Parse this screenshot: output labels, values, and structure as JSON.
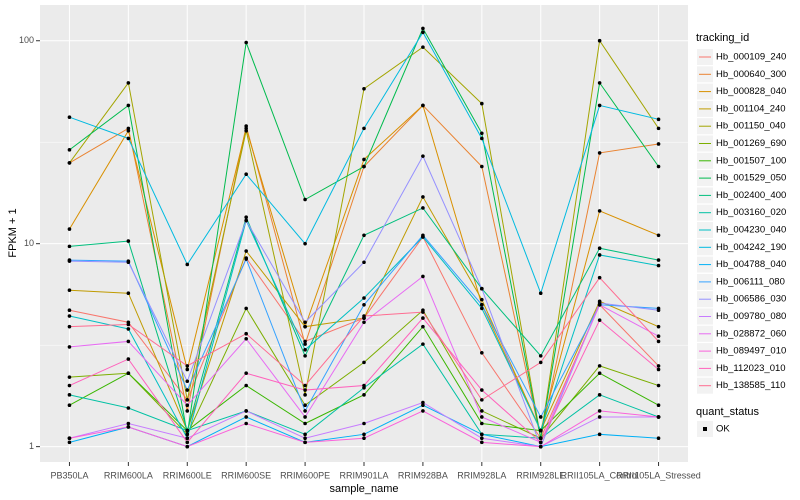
{
  "chart_data": {
    "type": "line",
    "xlabel": "sample_name",
    "ylabel": "FPKM + 1",
    "categories": [
      "PB350LA",
      "RRIM600LA",
      "RRIM600LE",
      "RRIM600SE",
      "RRIM600PE",
      "RRIM901LA",
      "RRIM928BA",
      "RRIM928LA",
      "RRIM928LE",
      "RRII105LA_Control",
      "RRII105LA_Stressed"
    ],
    "log_y": true,
    "ylim": [
      0.84,
      150
    ],
    "yticks": [
      1,
      10,
      100
    ],
    "grid": true,
    "legend_title": "tracking_id",
    "legend_position": "right",
    "point_legend": {
      "title": "quant_status",
      "labels": [
        "OK"
      ],
      "color": "#000000"
    },
    "series": [
      {
        "name": "Hb_000109_240",
        "color": "#F8766D",
        "values": [
          4.7,
          4.1,
          1.7,
          8.5,
          3.3,
          4.3,
          10.8,
          2.9,
          1.1,
          5.0,
          2.5
        ]
      },
      {
        "name": "Hb_000640_300",
        "color": "#EA8331",
        "values": [
          25,
          37,
          1.5,
          38,
          3.2,
          24,
          48,
          24,
          1.1,
          28,
          31
        ]
      },
      {
        "name": "Hb_000828_040",
        "color": "#D89000",
        "values": [
          11.8,
          36,
          2.4,
          37,
          3.9,
          26,
          48,
          5.0,
          1.2,
          14.5,
          11
        ]
      },
      {
        "name": "Hb_001104_240",
        "color": "#C09B00",
        "values": [
          5.9,
          5.7,
          1.2,
          9.2,
          3.9,
          4.3,
          17,
          5.3,
          1.2,
          5.2,
          3.9
        ]
      },
      {
        "name": "Hb_001150_040",
        "color": "#A3A500",
        "values": [
          25,
          62,
          1.7,
          36,
          1.8,
          58,
          93,
          49,
          1.1,
          100,
          37
        ]
      },
      {
        "name": "Hb_001269_690",
        "color": "#7CAE00",
        "values": [
          2.2,
          2.3,
          1.15,
          4.8,
          1.6,
          2.6,
          4.7,
          1.5,
          1.1,
          2.5,
          2.0
        ]
      },
      {
        "name": "Hb_001507_100",
        "color": "#39B600",
        "values": [
          1.6,
          2.3,
          1.2,
          2.0,
          1.3,
          1.8,
          3.9,
          1.3,
          1.2,
          2.3,
          1.6
        ]
      },
      {
        "name": "Hb_001529_050",
        "color": "#00BB4E",
        "values": [
          29,
          48,
          1.15,
          98,
          16.5,
          24,
          115,
          35,
          1.1,
          62,
          24
        ]
      },
      {
        "name": "Hb_002400_400",
        "color": "#00BF7D",
        "values": [
          9.7,
          10.3,
          1.2,
          13.5,
          2.8,
          11,
          15,
          6,
          2.8,
          9.5,
          8.3
        ]
      },
      {
        "name": "Hb_003160_020",
        "color": "#00C1A3",
        "values": [
          1.8,
          1.55,
          1.2,
          1.5,
          1.15,
          1.95,
          3.2,
          1.15,
          1.1,
          1.8,
          1.4
        ]
      },
      {
        "name": "Hb_004230_040",
        "color": "#00BFC4",
        "values": [
          4.4,
          3.8,
          1.1,
          13,
          3.0,
          5.4,
          10.8,
          4.8,
          1.2,
          8.8,
          7.8
        ]
      },
      {
        "name": "Hb_004242_190",
        "color": "#00BAE0",
        "values": [
          42,
          33,
          7.9,
          22,
          10,
          37,
          110,
          33,
          5.7,
          48,
          41
        ]
      },
      {
        "name": "Hb_004788_040",
        "color": "#00B0F6",
        "values": [
          1.05,
          1.25,
          1.0,
          1.4,
          1.05,
          1.15,
          1.6,
          1.15,
          1.0,
          1.15,
          1.1
        ]
      },
      {
        "name": "Hb_006111_080",
        "color": "#35A2FF",
        "values": [
          8.3,
          8.2,
          1.9,
          8.4,
          1.5,
          5,
          11,
          5,
          1.4,
          5.0,
          4.8
        ]
      },
      {
        "name": "Hb_006586_030",
        "color": "#9590FF",
        "values": [
          8.2,
          8.1,
          2.1,
          13,
          4.1,
          8.1,
          27,
          6,
          1.0,
          5.1,
          4.7
        ]
      },
      {
        "name": "Hb_009780_080",
        "color": "#C77CFF",
        "values": [
          1.1,
          1.3,
          1.1,
          1.5,
          1.1,
          1.3,
          1.65,
          1.1,
          1.0,
          1.4,
          1.4
        ]
      },
      {
        "name": "Hb_028872_060",
        "color": "#E76BF3",
        "values": [
          3.1,
          3.3,
          1.6,
          3.4,
          1.4,
          4.1,
          6.9,
          1.4,
          1.05,
          5.0,
          3.5
        ]
      },
      {
        "name": "Hb_089497_010",
        "color": "#FA62DB",
        "values": [
          1.1,
          1.25,
          1.0,
          1.3,
          1.05,
          1.1,
          1.5,
          1.05,
          1.0,
          1.5,
          1.4
        ]
      },
      {
        "name": "Hb_112023_010",
        "color": "#FF62BC",
        "values": [
          2.0,
          2.7,
          1.05,
          2.3,
          1.9,
          2.0,
          4.3,
          1.9,
          1.05,
          4.2,
          2.4
        ]
      },
      {
        "name": "Hb_138585_110",
        "color": "#FF6C91",
        "values": [
          3.9,
          4.0,
          2.5,
          3.6,
          2.0,
          4.4,
          4.6,
          1.7,
          2.6,
          6.8,
          3.3
        ]
      }
    ]
  }
}
